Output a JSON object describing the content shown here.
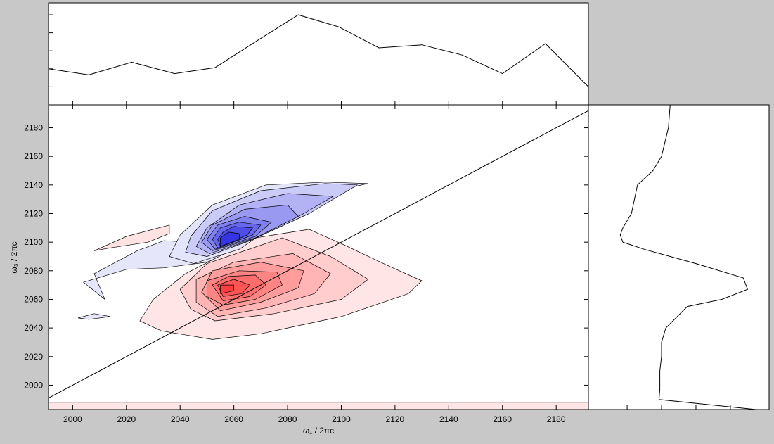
{
  "colors": {
    "background": "#c8c8c8",
    "positive_fill": "#ff0000",
    "negative_fill": "#0000ff",
    "line": "#000000"
  },
  "chart_data": [
    {
      "type": "heatmap",
      "role": "main 2D contour spectrum",
      "xlabel": "ω₁ / 2πc",
      "ylabel": "ω₃ / 2πc",
      "xlim": [
        1991,
        2192
      ],
      "ylim": [
        1983,
        2196
      ],
      "x_ticks": [
        2000,
        2020,
        2040,
        2060,
        2080,
        2100,
        2120,
        2140,
        2160,
        2180
      ],
      "y_ticks": [
        2000,
        2020,
        2040,
        2060,
        2080,
        2100,
        2120,
        2140,
        2160,
        2180
      ],
      "diagonal": {
        "from": [
          1991,
          1991
        ],
        "to": [
          2192,
          2192
        ]
      },
      "grid": false,
      "legend": "none",
      "negative_peak": {
        "center": [
          2056,
          2099
        ],
        "levels": [
          [
            [
              2045,
              2085
            ],
            [
              2062,
              2095
            ],
            [
              2080,
              2118
            ],
            [
              2098,
              2136
            ],
            [
              2110,
              2141
            ],
            [
              2094,
              2142
            ],
            [
              2072,
              2140
            ],
            [
              2052,
              2126
            ],
            [
              2040,
              2105
            ],
            [
              2036,
              2090
            ]
          ],
          [
            [
              2050,
              2090
            ],
            [
              2066,
              2101
            ],
            [
              2088,
              2120
            ],
            [
              2106,
              2140
            ],
            [
              2094,
              2141
            ],
            [
              2070,
              2136
            ],
            [
              2052,
              2122
            ],
            [
              2044,
              2104
            ],
            [
              2042,
              2093
            ]
          ],
          [
            [
              2051,
              2092
            ],
            [
              2067,
              2102
            ],
            [
              2086,
              2120
            ],
            [
              2097,
              2132
            ],
            [
              2080,
              2134
            ],
            [
              2062,
              2126
            ],
            [
              2050,
              2110
            ],
            [
              2046,
              2097
            ]
          ],
          [
            [
              2052,
              2094
            ],
            [
              2068,
              2103
            ],
            [
              2084,
              2118
            ],
            [
              2080,
              2126
            ],
            [
              2064,
              2123
            ],
            [
              2052,
              2112
            ],
            [
              2048,
              2100
            ]
          ],
          [
            [
              2053,
              2095
            ],
            [
              2068,
              2104
            ],
            [
              2074,
              2114
            ],
            [
              2064,
              2118
            ],
            [
              2054,
              2112
            ],
            [
              2050,
              2102
            ]
          ],
          [
            [
              2054,
              2096
            ],
            [
              2067,
              2105
            ],
            [
              2070,
              2112
            ],
            [
              2062,
              2114
            ],
            [
              2055,
              2110
            ],
            [
              2052,
              2102
            ]
          ],
          [
            [
              2055,
              2097
            ],
            [
              2065,
              2105
            ],
            [
              2067,
              2110
            ],
            [
              2060,
              2111
            ],
            [
              2056,
              2107
            ],
            [
              2054,
              2102
            ]
          ],
          [
            [
              2055,
              2097
            ],
            [
              2062,
              2102
            ],
            [
              2062,
              2106
            ],
            [
              2058,
              2107
            ],
            [
              2055,
              2103
            ]
          ]
        ]
      },
      "positive_peak": {
        "center": [
          2055,
          2068
        ],
        "levels": [
          [
            [
              2052,
              2032
            ],
            [
              2070,
              2036
            ],
            [
              2100,
              2048
            ],
            [
              2125,
              2064
            ],
            [
              2130,
              2073
            ],
            [
              2118,
              2083
            ],
            [
              2100,
              2099
            ],
            [
              2088,
              2109
            ],
            [
              2068,
              2103
            ],
            [
              2042,
              2078
            ],
            [
              2030,
              2060
            ],
            [
              2025,
              2045
            ],
            [
              2033,
              2038
            ]
          ],
          [
            [
              2053,
              2045
            ],
            [
              2075,
              2050
            ],
            [
              2100,
              2060
            ],
            [
              2110,
              2074
            ],
            [
              2096,
              2090
            ],
            [
              2078,
              2103
            ],
            [
              2050,
              2085
            ],
            [
              2040,
              2067
            ],
            [
              2044,
              2053
            ]
          ],
          [
            [
              2054,
              2048
            ],
            [
              2072,
              2054
            ],
            [
              2090,
              2064
            ],
            [
              2096,
              2078
            ],
            [
              2082,
              2092
            ],
            [
              2060,
              2086
            ],
            [
              2046,
              2074
            ],
            [
              2046,
              2058
            ]
          ],
          [
            [
              2055,
              2052
            ],
            [
              2070,
              2058
            ],
            [
              2084,
              2068
            ],
            [
              2086,
              2080
            ],
            [
              2070,
              2086
            ],
            [
              2052,
              2080
            ],
            [
              2048,
              2065
            ]
          ],
          [
            [
              2056,
              2056
            ],
            [
              2068,
              2060
            ],
            [
              2078,
              2070
            ],
            [
              2076,
              2079
            ],
            [
              2062,
              2080
            ],
            [
              2050,
              2073
            ],
            [
              2050,
              2062
            ]
          ],
          [
            [
              2056,
              2059
            ],
            [
              2066,
              2062
            ],
            [
              2072,
              2070
            ],
            [
              2068,
              2077
            ],
            [
              2058,
              2076
            ],
            [
              2052,
              2070
            ]
          ],
          [
            [
              2056,
              2062
            ],
            [
              2063,
              2064
            ],
            [
              2066,
              2070
            ],
            [
              2060,
              2074
            ],
            [
              2054,
              2070
            ]
          ],
          [
            [
              2055,
              2064
            ],
            [
              2060,
              2066
            ],
            [
              2060,
              2070
            ],
            [
              2055,
              2070
            ]
          ]
        ]
      },
      "minor_features": {
        "negative": [
          [
            [
              2034,
              2082
            ],
            [
              2050,
              2086
            ],
            [
              2058,
              2092
            ],
            [
              2044,
              2100
            ],
            [
              2034,
              2101
            ],
            [
              2024,
              2094
            ],
            [
              2008,
              2078
            ],
            [
              2012,
              2060
            ],
            [
              2004,
              2072
            ],
            [
              2020,
              2081
            ]
          ],
          [
            [
              2006,
              2046
            ],
            [
              2014,
              2048
            ],
            [
              2008,
              2050
            ],
            [
              2002,
              2047
            ]
          ]
        ],
        "positive": [
          [
            [
              2008,
              2094
            ],
            [
              2020,
              2104
            ],
            [
              2036,
              2112
            ],
            [
              2036,
              2106
            ],
            [
              2028,
              2100
            ],
            [
              2014,
              2096
            ]
          ]
        ],
        "baseline_band": {
          "x": [
            1991,
            2192
          ],
          "y_range": [
            1983,
            1988
          ]
        }
      }
    },
    {
      "type": "line",
      "role": "top projection along ω₁",
      "x": [
        1991,
        2006,
        2022,
        2038,
        2053,
        2068,
        2084,
        2099,
        2114,
        2130,
        2145,
        2160,
        2176,
        2192
      ],
      "values": [
        0.6,
        0.5,
        0.71,
        0.52,
        0.62,
        1.05,
        1.5,
        1.3,
        0.95,
        1.0,
        0.83,
        0.52,
        1.02,
        0.3
      ],
      "ylim": [
        0,
        1.7
      ]
    },
    {
      "type": "line",
      "role": "right projection along ω₃",
      "y": [
        2196,
        2180,
        2160,
        2150,
        2140,
        2120,
        2110,
        2105,
        2100,
        2095,
        2085,
        2075,
        2067,
        2060,
        2055,
        2040,
        2030,
        2020,
        2010,
        1997,
        1990,
        1983
      ],
      "values": [
        0.0,
        -0.02,
        -0.1,
        -0.2,
        -0.38,
        -0.45,
        -0.55,
        -0.58,
        -0.55,
        -0.3,
        0.3,
        0.85,
        0.9,
        0.6,
        0.2,
        -0.05,
        -0.1,
        -0.1,
        -0.12,
        -0.12,
        -0.13,
        1.0
      ],
      "xlim": [
        -0.95,
        1.15
      ]
    }
  ]
}
